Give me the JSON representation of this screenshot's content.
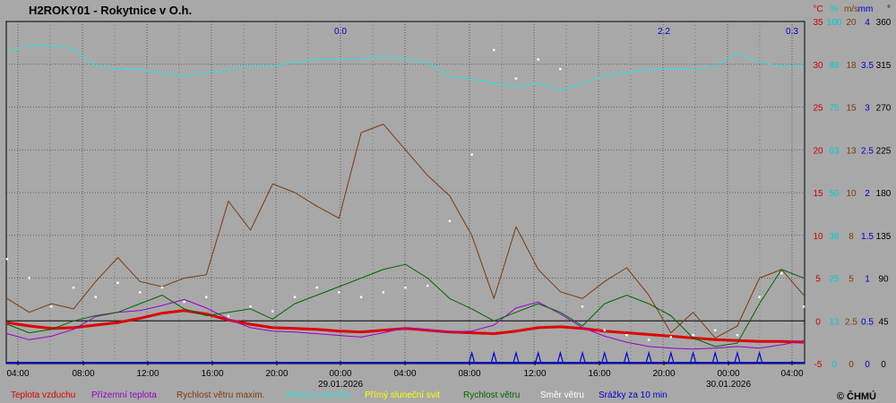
{
  "chart_data": {
    "type": "line",
    "title": "H2ROKY01 - Rokytnice v O.h.",
    "copyright": "© ČHMÚ",
    "x": {
      "tick_labels": [
        "04:00",
        "08:00",
        "12:00",
        "16:00",
        "20:00",
        "00:00",
        "04:00",
        "08:00",
        "12:00",
        "16:00",
        "20:00",
        "00:00",
        "04:00"
      ],
      "date_labels": [
        {
          "at": "00:00",
          "label": "29.01.2026"
        },
        {
          "at": "00:00",
          "label": "30.01.2026"
        }
      ]
    },
    "axes": {
      "temperature": {
        "unit": "°C",
        "ticks": [
          35,
          30,
          25,
          20,
          15,
          10,
          5,
          0,
          -5
        ],
        "color": "#cc0000"
      },
      "humidity": {
        "unit": "%",
        "ticks": [
          100,
          88,
          75,
          63,
          50,
          38,
          25,
          13,
          0
        ],
        "color": "#00cccc"
      },
      "wind_gust": {
        "unit": "m/s",
        "ticks": [
          20,
          18,
          15,
          13,
          10,
          8,
          5,
          2.5,
          0
        ],
        "color": "#7a3c10"
      },
      "precip": {
        "unit": "mm",
        "ticks": [
          4,
          3.5,
          3,
          2.5,
          2,
          1.5,
          1,
          0.5,
          0
        ],
        "color": "#0000cc"
      },
      "direction": {
        "unit": "°",
        "ticks": [
          360,
          315,
          270,
          225,
          180,
          135,
          90,
          45,
          0
        ],
        "color": "#000000"
      }
    },
    "precip_labels": [
      {
        "x": "00:00",
        "text": "0.0"
      },
      {
        "x": "20:00",
        "text": "2.2"
      },
      {
        "x": "04:00",
        "text": "0.3"
      }
    ],
    "series": [
      {
        "name": "Teplota vzduchu",
        "color": "#dd0000",
        "unit": "°C",
        "values": [
          -0.2,
          -0.6,
          -0.9,
          -0.8,
          -0.5,
          -0.2,
          0.3,
          0.9,
          1.2,
          0.8,
          0.1,
          -0.4,
          -0.8,
          -0.9,
          -1.0,
          -1.2,
          -1.3,
          -1.1,
          -0.9,
          -1.1,
          -1.3,
          -1.4,
          -1.5,
          -1.2,
          -0.8,
          -0.7,
          -0.9,
          -1.2,
          -1.4,
          -1.6,
          -1.8,
          -2.0,
          -2.2,
          -2.3,
          -2.4,
          -2.4,
          -2.5
        ]
      },
      {
        "name": "Přízemní teplota",
        "color": "#9900cc",
        "unit": "°C",
        "values": [
          -1.5,
          -2.2,
          -1.8,
          -1.0,
          0.5,
          1.0,
          1.2,
          1.8,
          2.5,
          1.5,
          0.2,
          -0.8,
          -1.2,
          -1.3,
          -1.5,
          -1.7,
          -1.9,
          -1.4,
          -0.8,
          -1.0,
          -1.3,
          -1.2,
          -0.5,
          1.5,
          2.2,
          0.8,
          -0.8,
          -1.8,
          -2.5,
          -3.0,
          -3.2,
          -3.3,
          -3.2,
          -3.0,
          -3.2,
          -2.8,
          -2.3
        ]
      },
      {
        "name": "Rychlost větru maxim.",
        "color": "#7a3c10",
        "unit": "m/s",
        "values": [
          3.8,
          3.0,
          3.5,
          3.2,
          4.8,
          6.2,
          4.8,
          4.5,
          5.0,
          5.2,
          9.5,
          7.8,
          10.5,
          10.0,
          9.2,
          8.5,
          13.5,
          14.0,
          12.5,
          11.0,
          9.8,
          7.5,
          3.8,
          8.0,
          5.5,
          4.2,
          3.8,
          4.8,
          5.6,
          4.0,
          1.8,
          3.0,
          1.5,
          2.2,
          5.0,
          5.5,
          4.0
        ]
      },
      {
        "name": "Vlhkost vzduchu",
        "color": "#33dddd",
        "unit": "%",
        "values": [
          91,
          93,
          93,
          92,
          87,
          86,
          86,
          85,
          84,
          85,
          86,
          87,
          87,
          88,
          89,
          89,
          89,
          90,
          89,
          88,
          84,
          83,
          82,
          81,
          82,
          80,
          82,
          84,
          85,
          86,
          86,
          86,
          87,
          91,
          88,
          87,
          87
        ]
      },
      {
        "name": "Přímý sluneční svit",
        "color": "#ffff00",
        "unit": "min",
        "values": []
      },
      {
        "name": "Rychlost větru",
        "color": "#006600",
        "unit": "m/s",
        "values": [
          2.3,
          1.8,
          2.0,
          2.5,
          2.8,
          3.0,
          3.5,
          4.0,
          3.2,
          2.8,
          3.0,
          3.2,
          2.6,
          3.5,
          4.0,
          4.5,
          5.0,
          5.5,
          5.8,
          5.0,
          3.8,
          3.2,
          2.5,
          3.0,
          3.5,
          3.0,
          2.2,
          3.5,
          4.0,
          3.5,
          2.8,
          1.5,
          1.0,
          1.2,
          3.5,
          5.5,
          5.0
        ]
      },
      {
        "name": "Směr větru",
        "color": "#ffffff",
        "unit": "°",
        "values": [
          110,
          90,
          60,
          80,
          70,
          85,
          75,
          80,
          65,
          70,
          50,
          60,
          55,
          70,
          80,
          75,
          70,
          75,
          80,
          82,
          150,
          220,
          330,
          300,
          320,
          310,
          60,
          35,
          30,
          25,
          28,
          30,
          35,
          30,
          70,
          95,
          60
        ]
      },
      {
        "name": "Srážky za 10 min",
        "color": "#0000cc",
        "unit": "mm",
        "values": [
          0,
          0,
          0,
          0,
          0,
          0,
          0,
          0,
          0,
          0,
          0,
          0,
          0,
          0,
          0,
          0,
          0,
          0,
          0,
          0,
          0,
          0.1,
          0.1,
          0.1,
          0.1,
          0.1,
          0.1,
          0.1,
          0.1,
          0.1,
          0.1,
          0.1,
          0.1,
          0.1,
          0.1,
          0,
          0
        ]
      }
    ]
  }
}
